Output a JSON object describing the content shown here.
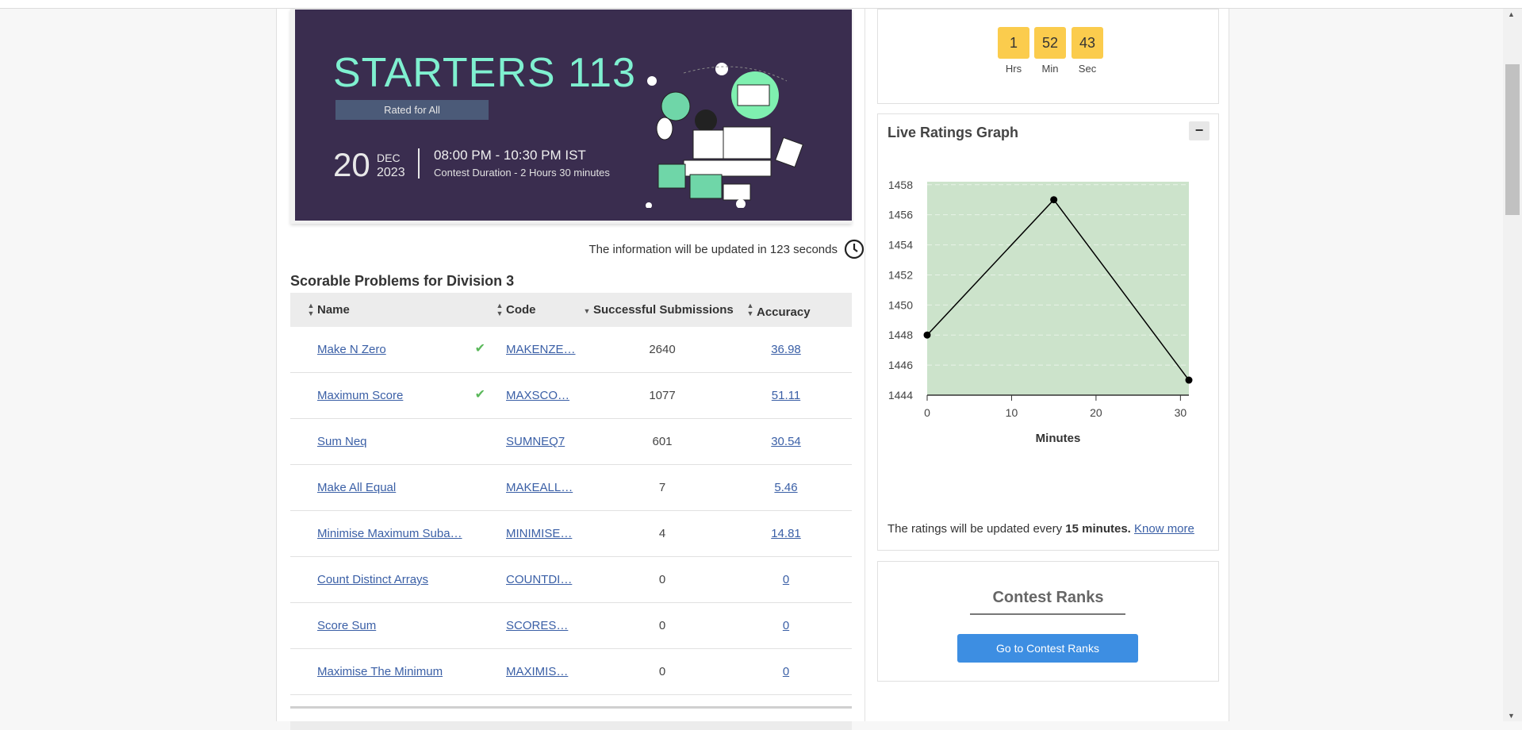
{
  "banner": {
    "title": "STARTERS 113",
    "rated": "Rated for All",
    "day": "20",
    "month": "DEC",
    "year": "2023",
    "time": "08:00 PM - 10:30 PM IST",
    "duration": "Contest Duration - 2  Hours 30 minutes"
  },
  "update_notice": "The information will be updated in 123 seconds",
  "section_title": "Scorable Problems for Division 3",
  "table": {
    "headers": {
      "name": "Name",
      "code": "Code",
      "subs": "Successful Submissions",
      "acc": "Accuracy"
    },
    "rows": [
      {
        "name": "Make N Zero",
        "code": "MAKENZE…",
        "subs": "2640",
        "acc": "36.98",
        "solved": true
      },
      {
        "name": "Maximum Score",
        "code": "MAXSCO…",
        "subs": "1077",
        "acc": "51.11",
        "solved": true
      },
      {
        "name": "Sum Neq",
        "code": "SUMNEQ7",
        "subs": "601",
        "acc": "30.54",
        "solved": false
      },
      {
        "name": "Make All Equal",
        "code": "MAKEALL…",
        "subs": "7",
        "acc": "5.46",
        "solved": false
      },
      {
        "name": "Minimise Maximum Suba…",
        "code": "MINIMISE…",
        "subs": "4",
        "acc": "14.81",
        "solved": false
      },
      {
        "name": "Count Distinct Arrays",
        "code": "COUNTDI…",
        "subs": "0",
        "acc": "0",
        "solved": false
      },
      {
        "name": "Score Sum",
        "code": "SCORES…",
        "subs": "0",
        "acc": "0",
        "solved": false
      },
      {
        "name": "Maximise The Minimum",
        "code": "MAXIMIS…",
        "subs": "0",
        "acc": "0",
        "solved": false
      }
    ]
  },
  "timer": {
    "hrs": "1",
    "min": "52",
    "sec": "43",
    "hrs_label": "Hrs",
    "min_label": "Min",
    "sec_label": "Sec"
  },
  "graph": {
    "title": "Live Ratings Graph",
    "collapse": "−",
    "note_pre": "The ratings will be updated every ",
    "note_bold": "15 minutes.",
    "note_link": "Know more"
  },
  "chart_data": {
    "type": "line",
    "x": [
      0,
      15,
      31
    ],
    "y": [
      1448,
      1457,
      1445
    ],
    "xlabel": "Minutes",
    "xticks": [
      0,
      10,
      20,
      30
    ],
    "yticks": [
      1444,
      1446,
      1448,
      1450,
      1452,
      1454,
      1456,
      1458
    ],
    "xlim": [
      0,
      31
    ],
    "ylim": [
      1444,
      1458.2
    ],
    "fill_color": "#cce3cb",
    "line_color": "#000000"
  },
  "ranks": {
    "title": "Contest Ranks",
    "button": "Go to Contest Ranks"
  },
  "colors": {
    "accent": "#3d8ee2",
    "link": "#3a5fa6",
    "timer": "#fbcc4d",
    "check": "#5ab85a"
  }
}
